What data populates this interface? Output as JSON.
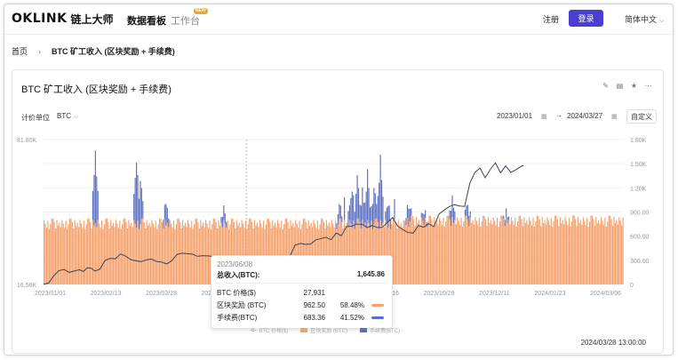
{
  "header": {
    "logo_mark": "OKLINK",
    "logo_cn": "链上大师",
    "nav_active": "数据看板",
    "nav_work": "工作台",
    "new_badge": "NEW",
    "register": "注册",
    "login": "登录",
    "language": "简体中文"
  },
  "breadcrumb": {
    "home": "首页",
    "current": "BTC 矿工收入 (区块奖励 + 手续费)"
  },
  "card": {
    "title": "BTC 矿工收入 (区块奖励 + 手续费)",
    "unit_label": "计价单位",
    "unit_value": "BTC",
    "date_start": "2023/01/01",
    "date_end": "2024/03/27",
    "custom_label": "自定义"
  },
  "tooltip": {
    "date": "2023/06/08",
    "total_label": "总收入(BTC):",
    "total_value": "1,645.86",
    "rows": [
      {
        "label": "BTC 价格($)",
        "value": "27,931",
        "pct": ""
      },
      {
        "label": "区块奖励 (BTC)",
        "value": "962.50",
        "pct": "58.48%"
      },
      {
        "label": "手续费(BTC)",
        "value": "683.36",
        "pct": "41.52%"
      }
    ]
  },
  "legend": {
    "price": "BTC 价格($)",
    "reward": "区块奖励 (BTC)",
    "fee": "手续费(BTC)"
  },
  "timestamp": "2024/03/28 13:00:00",
  "colors": {
    "reward": "#f5a06a",
    "fee": "#5b6fc2",
    "price": "#3d4554",
    "accent": "#4b3fd3"
  },
  "chart_data": {
    "type": "bar",
    "x_ticks": [
      "2023/01/01",
      "2023/02/13",
      "2023/03/28",
      "2023/05/10",
      "2023/06/22",
      "2023/08/04",
      "2023/09/16",
      "2023/10/29",
      "2023/12/11",
      "2024/01/23",
      "2024/03/06"
    ],
    "left_axis": {
      "ticks": [
        "81.80K",
        "16.56K"
      ]
    },
    "right_axis": {
      "ticks": [
        "1.80K",
        "1.50K",
        "1.20K",
        "900.00",
        "600.00",
        "300.00",
        "0"
      ],
      "ylim": [
        0,
        1800
      ]
    },
    "series": [
      {
        "name": "区块奖励 (BTC)",
        "type": "bar",
        "approx_value": 900
      },
      {
        "name": "手续费(BTC)",
        "type": "bar",
        "peak_value": 1646
      },
      {
        "name": "BTC 价格($)",
        "type": "line"
      }
    ],
    "price_curve": [
      [
        0,
        16.6
      ],
      [
        4,
        17.2
      ],
      [
        8,
        20.5
      ],
      [
        12,
        22.8
      ],
      [
        16,
        23.3
      ],
      [
        20,
        22.0
      ],
      [
        24,
        22.6
      ],
      [
        28,
        23.2
      ],
      [
        31,
        22.4
      ],
      [
        34,
        24.0
      ],
      [
        37,
        23.9
      ],
      [
        40,
        22.6
      ],
      [
        44,
        23.5
      ],
      [
        48,
        27.4
      ],
      [
        52,
        28.3
      ],
      [
        56,
        28.1
      ],
      [
        60,
        30.3
      ],
      [
        64,
        29.3
      ],
      [
        68,
        27.7
      ],
      [
        72,
        27.2
      ],
      [
        76,
        26.8
      ],
      [
        80,
        27.6
      ],
      [
        84,
        28.0
      ],
      [
        88,
        26.9
      ],
      [
        92,
        26.6
      ],
      [
        96,
        25.8
      ],
      [
        100,
        27.3
      ],
      [
        104,
        30.1
      ],
      [
        108,
        30.6
      ],
      [
        112,
        30.4
      ],
      [
        116,
        30.2
      ],
      [
        120,
        29.2
      ],
      [
        124,
        29.5
      ],
      [
        128,
        29.4
      ],
      [
        132,
        29.1
      ],
      [
        136,
        29.3
      ],
      [
        140,
        26.1
      ],
      [
        144,
        26.0
      ],
      [
        148,
        25.9
      ],
      [
        152,
        25.6
      ],
      [
        156,
        26.6
      ],
      [
        160,
        26.6
      ],
      [
        164,
        26.3
      ],
      [
        168,
        26.0
      ],
      [
        172,
        27.0
      ],
      [
        176,
        27.8
      ],
      [
        180,
        27.1
      ],
      [
        184,
        26.9
      ],
      [
        188,
        27.6
      ],
      [
        192,
        29.5
      ],
      [
        196,
        34.3
      ],
      [
        200,
        35.0
      ],
      [
        204,
        34.6
      ],
      [
        208,
        34.7
      ],
      [
        212,
        36.6
      ],
      [
        216,
        37.2
      ],
      [
        220,
        37.8
      ],
      [
        224,
        36.7
      ],
      [
        228,
        39.7
      ],
      [
        232,
        38.5
      ],
      [
        236,
        42.6
      ],
      [
        240,
        42.8
      ],
      [
        244,
        43.7
      ],
      [
        248,
        43.7
      ],
      [
        252,
        42.2
      ],
      [
        256,
        43.1
      ],
      [
        260,
        42.2
      ],
      [
        264,
        42.3
      ],
      [
        268,
        44.6
      ],
      [
        272,
        46.7
      ],
      [
        276,
        42.7
      ],
      [
        280,
        41.2
      ],
      [
        284,
        39.9
      ],
      [
        288,
        39.7
      ],
      [
        292,
        43.1
      ],
      [
        296,
        42.3
      ],
      [
        300,
        43.9
      ],
      [
        304,
        42.6
      ],
      [
        308,
        48.2
      ],
      [
        312,
        50.0
      ],
      [
        316,
        51.6
      ],
      [
        320,
        52.5
      ],
      [
        324,
        51.9
      ],
      [
        328,
        51.7
      ],
      [
        332,
        62.0
      ],
      [
        336,
        67.0
      ],
      [
        340,
        69.0
      ],
      [
        344,
        64.6
      ],
      [
        348,
        68.4
      ],
      [
        352,
        71.3
      ],
      [
        356,
        66.8
      ],
      [
        360,
        69.9
      ],
      [
        364,
        67.0
      ],
      [
        368,
        68.2
      ],
      [
        372,
        69.7
      ],
      [
        374,
        70.2
      ]
    ],
    "fee_spikes": [
      [
        40,
        1.0
      ],
      [
        72,
        0.9
      ],
      [
        75,
        0.6
      ],
      [
        95,
        0.3
      ],
      [
        140,
        0.2
      ],
      [
        230,
        0.2
      ],
      [
        240,
        0.5
      ],
      [
        244,
        0.6
      ],
      [
        248,
        0.45
      ],
      [
        252,
        0.7
      ],
      [
        257,
        0.5
      ],
      [
        262,
        0.9
      ],
      [
        268,
        0.3
      ],
      [
        284,
        0.25
      ],
      [
        296,
        0.15
      ],
      [
        318,
        0.3
      ],
      [
        330,
        0.2
      ],
      [
        360,
        0.12
      ]
    ],
    "bar_pattern": [
      0.82,
      0.86,
      0.8,
      0.9,
      0.78,
      0.85,
      0.93,
      0.84,
      0.88,
      0.79,
      0.91,
      0.83,
      0.87,
      0.81
    ]
  }
}
